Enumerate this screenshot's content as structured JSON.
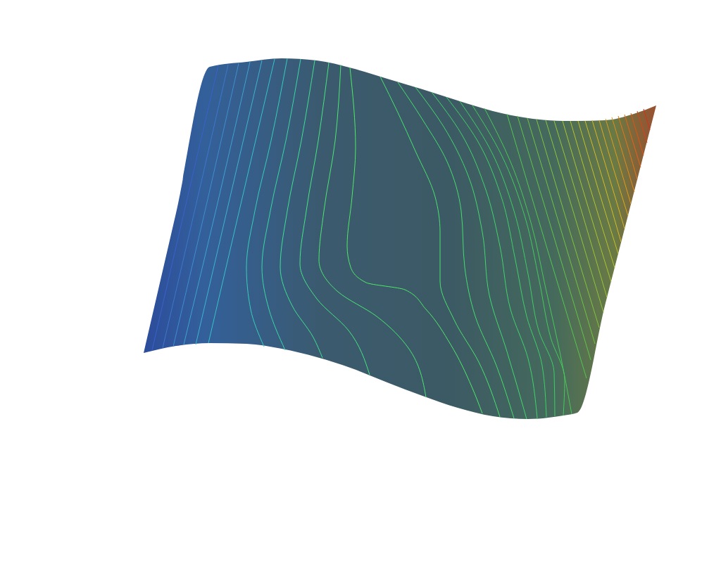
{
  "chart_data": {
    "type": "surface",
    "tick_labels": false,
    "xlim": [
      0,
      102.4
    ],
    "ylim": [
      81.5,
      0
    ],
    "surface": {
      "x": [
        20.4,
        25.0,
        29.8,
        35.0,
        40.0,
        45.0,
        50.0,
        55.0,
        60.0,
        65.0,
        70.0,
        75.0,
        80.0,
        82.0,
        86.0,
        90.0,
        93.2
      ],
      "top": [
        50.2,
        30.3,
        9.5,
        8.8,
        8.3,
        8.6,
        9.7,
        11.2,
        12.7,
        14.3,
        15.8,
        16.8,
        17.2,
        17.2,
        17.1,
        16.2,
        15.0
      ],
      "bottom": [
        50.2,
        49.2,
        48.8,
        48.9,
        49.6,
        50.8,
        52.4,
        54.4,
        56.3,
        58.0,
        59.2,
        59.6,
        59.1,
        58.7,
        43.1,
        27.5,
        15.0
      ]
    },
    "series": [
      {
        "color": "#3a62c8",
        "x": [
          31.0,
          26.3,
          21.6
        ],
        "y": [
          9.3,
          29.5,
          49.8
        ]
      },
      {
        "color": "#3d78cc",
        "x": [
          32.4,
          27.8,
          23.1
        ],
        "y": [
          9.2,
          29.3,
          49.5
        ]
      },
      {
        "color": "#3f8ed0",
        "x": [
          33.9,
          29.3,
          24.6
        ],
        "y": [
          9.0,
          29.2,
          49.3
        ]
      },
      {
        "color": "#3ea3d2",
        "x": [
          35.5,
          30.9,
          26.1
        ],
        "y": [
          8.8,
          28.9,
          49.0
        ]
      },
      {
        "color": "#3cb5d0",
        "x": [
          37.2,
          32.5,
          27.8
        ],
        "y": [
          8.6,
          28.8,
          49.0
        ]
      },
      {
        "color": "#36c3c8",
        "x": [
          39.0,
          34.3,
          29.6
        ],
        "y": [
          8.4,
          28.6,
          48.8
        ]
      },
      {
        "color": "#35cfb8",
        "x": [
          40.8,
          38.5,
          36.2,
          35.0,
          35.6,
          37.5
        ],
        "y": [
          8.3,
          20.0,
          30.0,
          38.0,
          44.0,
          49.3
        ]
      },
      {
        "color": "#38d8a4",
        "x": [
          42.7,
          40.6,
          38.4,
          37.2,
          38.2,
          40.5
        ],
        "y": [
          8.4,
          20.0,
          30.0,
          38.0,
          44.0,
          49.8
        ]
      },
      {
        "color": "#3ee090",
        "x": [
          44.7,
          42.8,
          40.8,
          39.8,
          41.5,
          44.5,
          45.8
        ],
        "y": [
          8.6,
          20.0,
          30.0,
          38.0,
          43.5,
          48.0,
          50.9
        ]
      },
      {
        "color": "#45e680",
        "x": [
          46.7,
          45.2,
          43.5,
          42.6,
          45.0,
          49.5,
          52.5
        ],
        "y": [
          8.9,
          20.0,
          30.0,
          37.5,
          42.5,
          47.0,
          53.3
        ]
      },
      {
        "color": "#4ae870",
        "x": [
          48.4,
          47.6,
          46.0,
          45.3,
          48.0,
          53.5,
          58.0,
          60.5
        ],
        "y": [
          9.2,
          20.0,
          30.0,
          37.0,
          41.5,
          45.0,
          49.5,
          56.5
        ]
      },
      {
        "color": "#4eea66",
        "x": [
          49.7,
          50.5,
          50.0,
          49.3,
          49.8,
          52.0,
          57.5,
          60.5,
          64.0,
          67.0,
          68.5
        ],
        "y": [
          9.6,
          21.0,
          28.0,
          35.0,
          38.0,
          40.2,
          41.2,
          44.0,
          49.0,
          55.0,
          58.8
        ]
      },
      {
        "color": "#48e46a",
        "x": [
          54.0,
          56.5,
          59.0,
          61.8,
          62.5,
          62.5,
          64.5,
          68.0,
          71.0
        ],
        "y": [
          10.9,
          16.0,
          21.5,
          28.0,
          33.0,
          40.0,
          45.5,
          51.5,
          59.3
        ]
      },
      {
        "color": "#44de6c",
        "x": [
          56.5,
          60.0,
          63.5,
          65.5,
          66.0,
          67.5,
          70.5,
          73.0
        ],
        "y": [
          11.7,
          17.0,
          23.0,
          30.0,
          38.0,
          45.0,
          52.0,
          59.5
        ]
      },
      {
        "color": "#42d86c",
        "x": [
          59.0,
          63.0,
          66.5,
          68.5,
          69.5,
          72.0,
          74.8
        ],
        "y": [
          12.4,
          18.0,
          25.0,
          33.0,
          42.0,
          50.0,
          59.6
        ]
      },
      {
        "color": "#40d46a",
        "x": [
          61.3,
          65.5,
          69.0,
          71.0,
          72.5,
          75.0,
          76.3
        ],
        "y": [
          13.1,
          19.0,
          27.0,
          35.0,
          44.0,
          51.0,
          59.5
        ]
      },
      {
        "color": "#3fd068",
        "x": [
          63.4,
          67.8,
          71.2,
          73.2,
          74.8,
          77.0,
          77.6
        ],
        "y": [
          13.8,
          20.0,
          28.0,
          37.0,
          45.0,
          52.0,
          59.3
        ]
      },
      {
        "color": "#40cc64",
        "x": [
          65.3,
          69.5,
          73.0,
          75.0,
          76.5,
          78.7,
          78.8
        ],
        "y": [
          14.4,
          21.0,
          30.0,
          39.0,
          47.0,
          53.0,
          59.2
        ]
      },
      {
        "color": "#44ca5e",
        "x": [
          67.1,
          71.2,
          74.6,
          76.6,
          78.2,
          80.2,
          80.0
        ],
        "y": [
          15.0,
          22.0,
          31.0,
          40.0,
          48.0,
          54.0,
          59.1
        ]
      },
      {
        "color": "#4ac858",
        "x": [
          68.8,
          72.5,
          75.5,
          77.5,
          79.5,
          81.2
        ],
        "y": [
          15.4,
          23.0,
          32.0,
          41.0,
          50.0,
          58.9
        ]
      },
      {
        "color": "#56c650",
        "x": [
          72.0,
          77.6,
          83.3
        ],
        "y": [
          16.2,
          35.0,
          53.8
        ]
      },
      {
        "color": "#62c44a",
        "x": [
          73.5,
          78.7,
          83.9
        ],
        "y": [
          16.5,
          33.8,
          51.2
        ]
      },
      {
        "color": "#70c444",
        "x": [
          74.9,
          79.7,
          84.5
        ],
        "y": [
          16.8,
          32.8,
          48.9
        ]
      },
      {
        "color": "#80c440",
        "x": [
          76.2,
          80.6,
          85.1
        ],
        "y": [
          17.0,
          31.8,
          46.6
        ]
      },
      {
        "color": "#8ec43c",
        "x": [
          77.5,
          81.6,
          85.7
        ],
        "y": [
          17.1,
          30.7,
          44.4
        ]
      },
      {
        "color": "#9cc438",
        "x": [
          78.7,
          82.5,
          86.2
        ],
        "y": [
          17.2,
          29.7,
          42.3
        ]
      },
      {
        "color": "#aac434",
        "x": [
          79.9,
          83.3,
          86.8
        ],
        "y": [
          17.2,
          28.7,
          40.1
        ]
      },
      {
        "color": "#b8c230",
        "x": [
          81.0,
          84.1,
          87.3
        ],
        "y": [
          17.2,
          27.7,
          38.1
        ]
      },
      {
        "color": "#c6c02c",
        "x": [
          82.1,
          84.9,
          87.8
        ],
        "y": [
          17.2,
          26.7,
          36.1
        ]
      },
      {
        "color": "#d2bc28",
        "x": [
          83.1,
          85.7,
          88.2
        ],
        "y": [
          17.2,
          25.8,
          34.4
        ]
      },
      {
        "color": "#dab424",
        "x": [
          84.1,
          86.4,
          88.7
        ],
        "y": [
          17.1,
          24.8,
          32.5
        ]
      },
      {
        "color": "#dfa820",
        "x": [
          85.1,
          87.1,
          89.2
        ],
        "y": [
          17.1,
          23.9,
          30.7
        ]
      },
      {
        "color": "#e29a1e",
        "x": [
          86.0,
          87.8,
          89.6
        ],
        "y": [
          16.9,
          22.9,
          29.0
        ]
      },
      {
        "color": "#e48a1c",
        "x": [
          86.9,
          88.5,
          90.1
        ],
        "y": [
          16.7,
          22.0,
          27.3
        ]
      },
      {
        "color": "#e4781a",
        "x": [
          87.8,
          89.2,
          90.5
        ],
        "y": [
          16.5,
          21.0,
          25.5
        ]
      },
      {
        "color": "#e26618",
        "x": [
          88.7,
          91.0
        ],
        "y": [
          16.3,
          23.8
        ]
      },
      {
        "color": "#de5418",
        "x": [
          89.6,
          91.4
        ],
        "y": [
          16.1,
          22.1
        ]
      },
      {
        "color": "#d84418",
        "x": [
          90.5,
          91.9
        ],
        "y": [
          15.8,
          20.3
        ]
      },
      {
        "color": "#d03418",
        "x": [
          91.4,
          92.3
        ],
        "y": [
          15.5,
          18.5
        ]
      }
    ]
  }
}
